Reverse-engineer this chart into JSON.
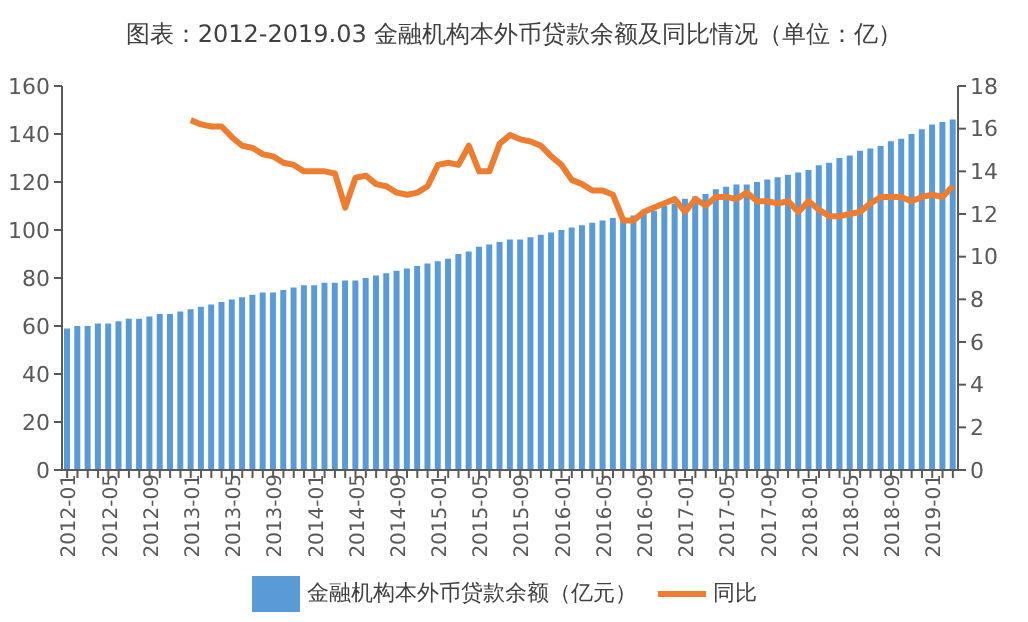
{
  "chart_data": {
    "type": "bar",
    "title": "图表：2012-2019.03 金融机构本外币贷款余额及同比情况（单位：亿）",
    "categories": [
      "2012-01",
      null,
      null,
      null,
      "2012-05",
      null,
      null,
      null,
      "2012-09",
      null,
      null,
      null,
      "2013-01",
      null,
      null,
      null,
      "2013-05",
      null,
      null,
      null,
      "2013-09",
      null,
      null,
      null,
      "2014-01",
      null,
      null,
      null,
      "2014-05",
      null,
      null,
      null,
      "2014-09",
      null,
      null,
      null,
      "2015-01",
      null,
      null,
      null,
      "2015-05",
      null,
      null,
      null,
      "2015-09",
      null,
      null,
      null,
      "2016-01",
      null,
      null,
      null,
      "2016-05",
      null,
      null,
      null,
      "2016-09",
      null,
      null,
      null,
      "2017-01",
      null,
      null,
      null,
      "2017-05",
      null,
      null,
      null,
      "2017-09",
      null,
      null,
      null,
      "2018-01",
      null,
      null,
      null,
      "2018-05",
      null,
      null,
      null,
      "2018-09",
      null,
      null,
      null,
      "2019-01",
      null,
      null
    ],
    "series": [
      {
        "name": "金融机构本外币贷款余额（亿元）",
        "color": "#5b9bd5",
        "values": [
          59,
          60,
          60,
          61,
          61,
          62,
          63,
          63,
          64,
          65,
          65,
          66,
          67,
          68,
          69,
          70,
          71,
          72,
          73,
          74,
          74,
          75,
          76,
          77,
          77,
          78,
          78,
          79,
          79,
          80,
          81,
          82,
          83,
          84,
          85,
          86,
          87,
          88,
          90,
          91,
          93,
          94,
          95,
          96,
          96,
          97,
          98,
          99,
          100,
          101,
          102,
          103,
          104,
          105,
          105,
          106,
          107,
          108,
          110,
          111,
          113,
          114,
          115,
          117,
          118,
          119,
          119,
          120,
          121,
          122,
          123,
          124,
          125,
          127,
          128,
          130,
          131,
          133,
          134,
          135,
          137,
          138,
          140,
          142,
          144,
          145,
          146
        ]
      },
      {
        "name": "同比",
        "type": "line",
        "axis": "y2",
        "color": "#ed7d31",
        "values": [
          null,
          null,
          null,
          null,
          null,
          null,
          null,
          null,
          null,
          null,
          null,
          null,
          16.4,
          16.2,
          16.1,
          16.1,
          15.6,
          15.2,
          15.1,
          14.8,
          14.7,
          14.4,
          14.3,
          14.0,
          14.0,
          14.0,
          13.9,
          12.3,
          13.7,
          13.8,
          13.4,
          13.3,
          13.0,
          12.9,
          13.0,
          13.3,
          14.3,
          14.4,
          14.3,
          15.2,
          14.0,
          14.0,
          15.3,
          15.7,
          15.5,
          15.4,
          15.2,
          14.7,
          14.3,
          13.6,
          13.4,
          13.1,
          13.1,
          12.9,
          11.7,
          11.7,
          12.1,
          12.3,
          12.5,
          12.7,
          12.1,
          12.7,
          12.4,
          12.8,
          12.8,
          12.7,
          13.0,
          12.6,
          12.6,
          12.5,
          12.6,
          12.1,
          12.6,
          12.2,
          11.9,
          11.9,
          12.0,
          12.1,
          12.5,
          12.8,
          12.8,
          12.8,
          12.6,
          12.8,
          12.9,
          12.8,
          13.3
        ]
      }
    ],
    "ylim": [
      0,
      160
    ],
    "yticks": [
      0,
      20,
      40,
      60,
      80,
      100,
      120,
      140,
      160
    ],
    "y2lim": [
      0,
      18
    ],
    "y2ticks": [
      0,
      2,
      4,
      6,
      8,
      10,
      12,
      14,
      16,
      18
    ],
    "legend": "bottom",
    "marker": "none",
    "line_style": "solid"
  }
}
